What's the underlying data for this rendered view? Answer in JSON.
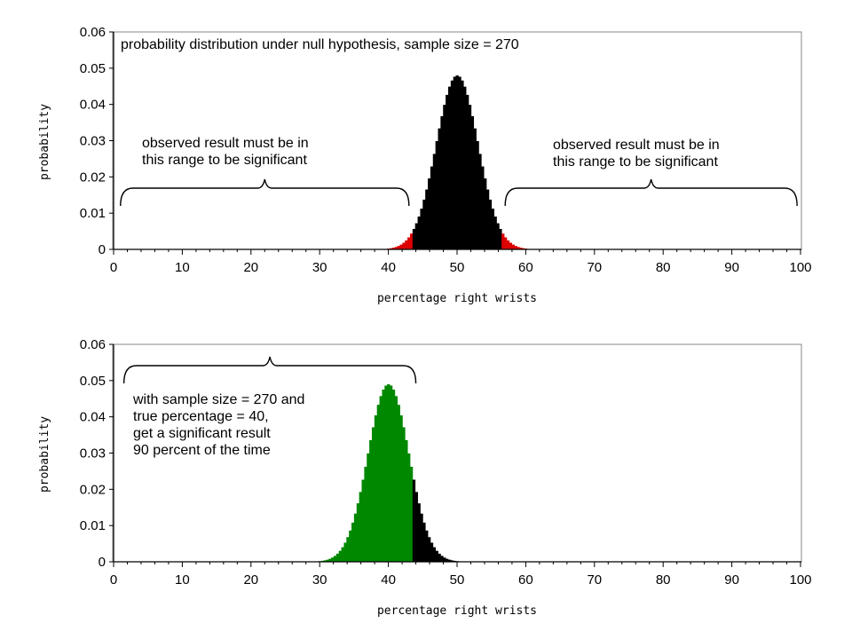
{
  "chart_data": [
    {
      "type": "bar",
      "title": "probability distribution under null hypothesis, sample size = 270",
      "xlabel": "percentage right wrists",
      "ylabel": "probability",
      "xlim": [
        0,
        100
      ],
      "ylim": [
        0,
        0.06
      ],
      "xticks": [
        "0",
        "10",
        "20",
        "30",
        "40",
        "50",
        "60",
        "70",
        "80",
        "90",
        "100"
      ],
      "yticks": [
        "0",
        "0.01",
        "0.02",
        "0.03",
        "0.04",
        "0.05",
        "0.06"
      ],
      "grid": false,
      "distribution": {
        "kind": "binomial",
        "n": 270,
        "p": 0.5,
        "peak_x": 50,
        "peak_y": 0.048
      },
      "regions": [
        {
          "from": 0,
          "to": 43.5,
          "color": "#dd0000"
        },
        {
          "from": 43.5,
          "to": 56.5,
          "color": "#000000"
        },
        {
          "from": 56.5,
          "to": 100,
          "color": "#dd0000"
        }
      ],
      "braces": [
        {
          "from": 1,
          "to": 43,
          "label_lines": [
            "observed result must be in",
            "this range to be significant"
          ]
        },
        {
          "from": 57,
          "to": 99.5,
          "label_lines": [
            "observed result must be in",
            "this range to be significant"
          ]
        }
      ]
    },
    {
      "type": "bar",
      "title": "",
      "xlabel": "percentage right wrists",
      "ylabel": "probability",
      "xlim": [
        0,
        100
      ],
      "ylim": [
        0,
        0.06
      ],
      "xticks": [
        "0",
        "10",
        "20",
        "30",
        "40",
        "50",
        "60",
        "70",
        "80",
        "90",
        "100"
      ],
      "yticks": [
        "0",
        "0.01",
        "0.02",
        "0.03",
        "0.04",
        "0.05",
        "0.06"
      ],
      "grid": false,
      "distribution": {
        "kind": "binomial",
        "n": 270,
        "p": 0.4,
        "peak_x": 40,
        "peak_y": 0.049
      },
      "regions": [
        {
          "from": 0,
          "to": 43.5,
          "color": "#008800"
        },
        {
          "from": 43.5,
          "to": 100,
          "color": "#000000"
        }
      ],
      "braces": [
        {
          "from": 1.5,
          "to": 44,
          "label_lines": []
        }
      ],
      "annotation_lines": [
        "with sample size = 270 and",
        "true percentage = 40,",
        "get a significant result",
        "90 percent of the time"
      ]
    }
  ]
}
